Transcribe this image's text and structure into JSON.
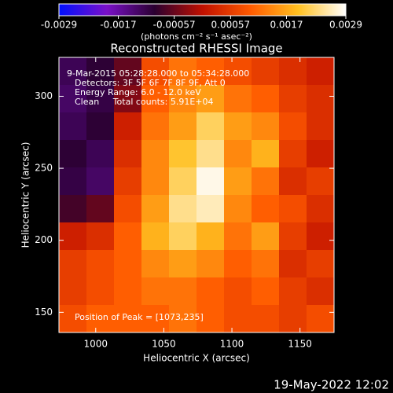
{
  "chart_data": {
    "type": "heatmap",
    "title": "Reconstructed RHESSI Image",
    "x_label": "Heliocentric X (arcsec)",
    "y_label": "Heliocentric Y (arcsec)",
    "annotations": [
      "9-Mar-2015 05:28:28.000 to 05:34:28.000",
      "Detectors: 3F 5F 6F 7F 8F 9F, Att 0",
      "Energy Range: 6.0 - 12.0 keV",
      "Clean     Total counts: 5.91E+04"
    ],
    "peak_label": "Position of Peak = [1073,235]",
    "footer": "19-May-2022 12:02",
    "colorbar_label": "(photons cm⁻² s⁻¹ asec⁻²)",
    "clim": [
      -0.0029,
      0.0029
    ],
    "cticks": [
      -0.0029,
      -0.0017,
      -0.00057,
      0.00057,
      0.0017,
      0.0029
    ],
    "colormap": [
      "#0010ff",
      "#7a10c8",
      "#2a0030",
      "#c01000",
      "#ff5a00",
      "#ffc020",
      "#ffffff"
    ],
    "xlim": [
      973,
      1175
    ],
    "ylim": [
      136,
      327
    ],
    "xticks": [
      1000,
      1050,
      1100,
      1150
    ],
    "yticks": [
      150,
      200,
      250,
      300
    ],
    "z": [
      [
        -0.0012,
        -0.001,
        -0.0006,
        0.0008,
        0.0012,
        0.001,
        0.0008,
        0.0006,
        0.0004,
        0.0002
      ],
      [
        -0.0013,
        -0.0011,
        -0.0004,
        0.001,
        0.0014,
        0.0016,
        0.0012,
        0.001,
        0.0006,
        0.0004
      ],
      [
        -0.0012,
        -0.001,
        0.0002,
        0.0012,
        0.0016,
        0.0022,
        0.0016,
        0.0014,
        0.0008,
        0.0004
      ],
      [
        -0.001,
        -0.0012,
        0.0004,
        0.0014,
        0.002,
        0.0024,
        0.0014,
        0.0018,
        0.0006,
        0.0002
      ],
      [
        -0.0011,
        -0.0013,
        0.0006,
        0.0014,
        0.0022,
        0.0028,
        0.0016,
        0.0012,
        0.0004,
        0.0006
      ],
      [
        -0.0008,
        -0.0006,
        0.0008,
        0.0016,
        0.0024,
        0.0026,
        0.0014,
        0.001,
        0.0008,
        0.0004
      ],
      [
        0.0002,
        0.0004,
        0.001,
        0.0018,
        0.0022,
        0.0018,
        0.0012,
        0.0016,
        0.0006,
        0.0002
      ],
      [
        0.0006,
        0.0008,
        0.001,
        0.0014,
        0.0016,
        0.0014,
        0.001,
        0.0012,
        0.0004,
        0.0006
      ],
      [
        0.0006,
        0.0008,
        0.001,
        0.0012,
        0.0012,
        0.001,
        0.0008,
        0.001,
        0.0006,
        0.0004
      ],
      [
        0.0008,
        0.001,
        0.001,
        0.001,
        0.0012,
        0.001,
        0.0008,
        0.0008,
        0.0006,
        0.0008
      ]
    ]
  }
}
